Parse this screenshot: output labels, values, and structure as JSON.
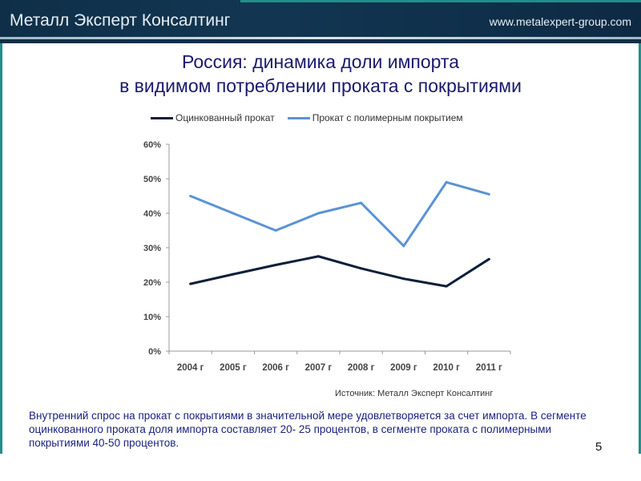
{
  "header": {
    "brand": "Металл Эксперт Консалтинг",
    "url": "www.metalexpert-group.com"
  },
  "slide": {
    "title_line1": "Россия: динамика доли импорта",
    "title_line2": "в видимом потреблении проката с покрытиями",
    "source": "Источник: Металл Эксперт Консалтинг",
    "note": "Внутренний спрос на прокат с покрытиями в значительной мере удовлетворяется за счет импорта. В сегменте оцинкованного проката доля импорта составляет 20- 25 процентов, в сегменте проката с полимерными покрытиями  40-50 процентов.",
    "page_number": "5"
  },
  "colors": {
    "header": "#0f2f48",
    "accent": "#1f8f8c",
    "series_dark": "#0d1f3a",
    "series_light": "#5b93d3",
    "text": "#1a237e"
  },
  "chart_data": {
    "type": "line",
    "categories": [
      "2004 г",
      "2005 г",
      "2006 г",
      "2007 г",
      "2008 г",
      "2009 г",
      "2010 г",
      "2011 г"
    ],
    "y_ticks": [
      "0%",
      "10%",
      "20%",
      "30%",
      "40%",
      "50%",
      "60%"
    ],
    "ylim": [
      0,
      60
    ],
    "grid": false,
    "legend_position": "top",
    "series": [
      {
        "name": "Оцинкованный  прокат",
        "color": "#0d1f3a",
        "values": [
          19.5,
          22.3,
          25,
          27.5,
          24,
          21,
          18.8,
          26.7
        ]
      },
      {
        "name": "Прокат с полимерным  покрытием",
        "color": "#5b93d3",
        "values": [
          45,
          40,
          35,
          40,
          43,
          30.5,
          49,
          45.5
        ]
      }
    ]
  }
}
